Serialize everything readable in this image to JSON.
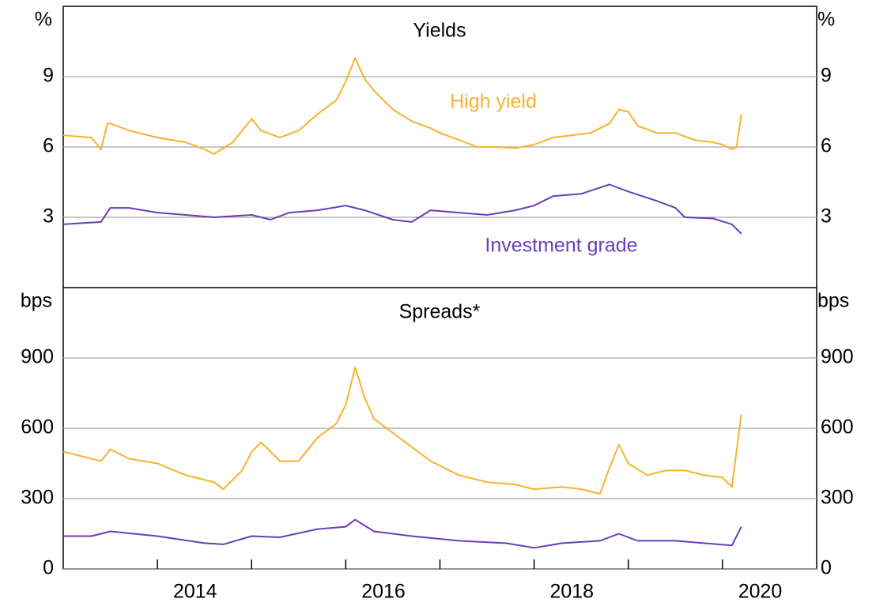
{
  "chart_data": [
    {
      "type": "line",
      "title": "Yields",
      "unit": "%",
      "xlim": [
        2013,
        2021
      ],
      "ylim": [
        0,
        12
      ],
      "yticks": [
        3,
        6,
        9
      ],
      "grid": true,
      "series": [
        {
          "name": "High yield",
          "color": "#f7b22e",
          "x": [
            2013.0,
            2013.3,
            2013.4,
            2013.47,
            2013.5,
            2013.7,
            2014.0,
            2014.3,
            2014.5,
            2014.6,
            2014.8,
            2015.0,
            2015.1,
            2015.3,
            2015.5,
            2015.7,
            2015.9,
            2016.0,
            2016.1,
            2016.2,
            2016.3,
            2016.5,
            2016.7,
            2016.9,
            2017.0,
            2017.2,
            2017.4,
            2017.6,
            2017.8,
            2018.0,
            2018.2,
            2018.4,
            2018.6,
            2018.8,
            2018.9,
            2019.0,
            2019.1,
            2019.3,
            2019.5,
            2019.7,
            2019.9,
            2020.0,
            2020.1,
            2020.15,
            2020.2
          ],
          "values": [
            6.5,
            6.4,
            5.9,
            7.0,
            7.0,
            6.7,
            6.4,
            6.2,
            5.9,
            5.7,
            6.2,
            7.2,
            6.7,
            6.4,
            6.7,
            7.4,
            8.0,
            8.8,
            9.8,
            8.9,
            8.4,
            7.6,
            7.1,
            6.8,
            6.6,
            6.3,
            6.0,
            6.0,
            5.95,
            6.1,
            6.4,
            6.5,
            6.6,
            7.0,
            7.6,
            7.5,
            6.9,
            6.6,
            6.6,
            6.3,
            6.2,
            6.1,
            5.9,
            6.0,
            7.4
          ]
        },
        {
          "name": "Investment grade",
          "color": "#6a3db8",
          "x": [
            2013.0,
            2013.4,
            2013.5,
            2013.7,
            2014.0,
            2014.3,
            2014.6,
            2015.0,
            2015.2,
            2015.4,
            2015.7,
            2016.0,
            2016.2,
            2016.5,
            2016.7,
            2016.9,
            2017.2,
            2017.5,
            2017.8,
            2018.0,
            2018.2,
            2018.5,
            2018.8,
            2019.0,
            2019.3,
            2019.5,
            2019.6,
            2019.9,
            2020.1,
            2020.2
          ],
          "values": [
            2.7,
            2.8,
            3.4,
            3.4,
            3.2,
            3.1,
            3.0,
            3.1,
            2.9,
            3.2,
            3.3,
            3.5,
            3.3,
            2.9,
            2.8,
            3.3,
            3.2,
            3.1,
            3.3,
            3.5,
            3.9,
            4.0,
            4.4,
            4.1,
            3.7,
            3.4,
            3.0,
            2.95,
            2.7,
            2.3
          ]
        }
      ]
    },
    {
      "type": "line",
      "title": "Spreads*",
      "unit": "bps",
      "xlim": [
        2013,
        2021
      ],
      "ylim": [
        0,
        1200
      ],
      "yticks": [
        0,
        300,
        600,
        900
      ],
      "grid": true,
      "xticks": [
        2014,
        2015,
        2016,
        2017,
        2018,
        2019,
        2020
      ],
      "xlabels": [
        2014,
        2016,
        2018,
        2020
      ],
      "series": [
        {
          "name": "High yield",
          "color": "#f7b22e",
          "x": [
            2013.0,
            2013.4,
            2013.5,
            2013.7,
            2014.0,
            2014.3,
            2014.6,
            2014.7,
            2014.9,
            2015.0,
            2015.1,
            2015.3,
            2015.5,
            2015.7,
            2015.9,
            2016.0,
            2016.1,
            2016.2,
            2016.3,
            2016.5,
            2016.7,
            2016.9,
            2017.2,
            2017.5,
            2017.8,
            2018.0,
            2018.3,
            2018.5,
            2018.7,
            2018.8,
            2018.9,
            2019.0,
            2019.2,
            2019.4,
            2019.6,
            2019.8,
            2020.0,
            2020.1,
            2020.2
          ],
          "values": [
            500,
            460,
            510,
            470,
            450,
            400,
            370,
            340,
            420,
            500,
            540,
            460,
            460,
            560,
            620,
            700,
            860,
            730,
            640,
            580,
            520,
            460,
            400,
            370,
            360,
            340,
            350,
            340,
            320,
            430,
            530,
            450,
            400,
            420,
            420,
            400,
            390,
            350,
            660
          ]
        },
        {
          "name": "Investment grade",
          "color": "#6a3db8",
          "x": [
            2013.0,
            2013.3,
            2013.5,
            2014.0,
            2014.5,
            2014.7,
            2015.0,
            2015.3,
            2015.7,
            2016.0,
            2016.1,
            2016.3,
            2016.7,
            2017.2,
            2017.7,
            2018.0,
            2018.3,
            2018.7,
            2018.9,
            2019.1,
            2019.5,
            2019.8,
            2020.1,
            2020.2
          ],
          "values": [
            140,
            140,
            160,
            140,
            110,
            105,
            140,
            135,
            170,
            180,
            210,
            160,
            140,
            120,
            110,
            90,
            110,
            120,
            150,
            120,
            120,
            110,
            100,
            180
          ]
        }
      ]
    }
  ]
}
